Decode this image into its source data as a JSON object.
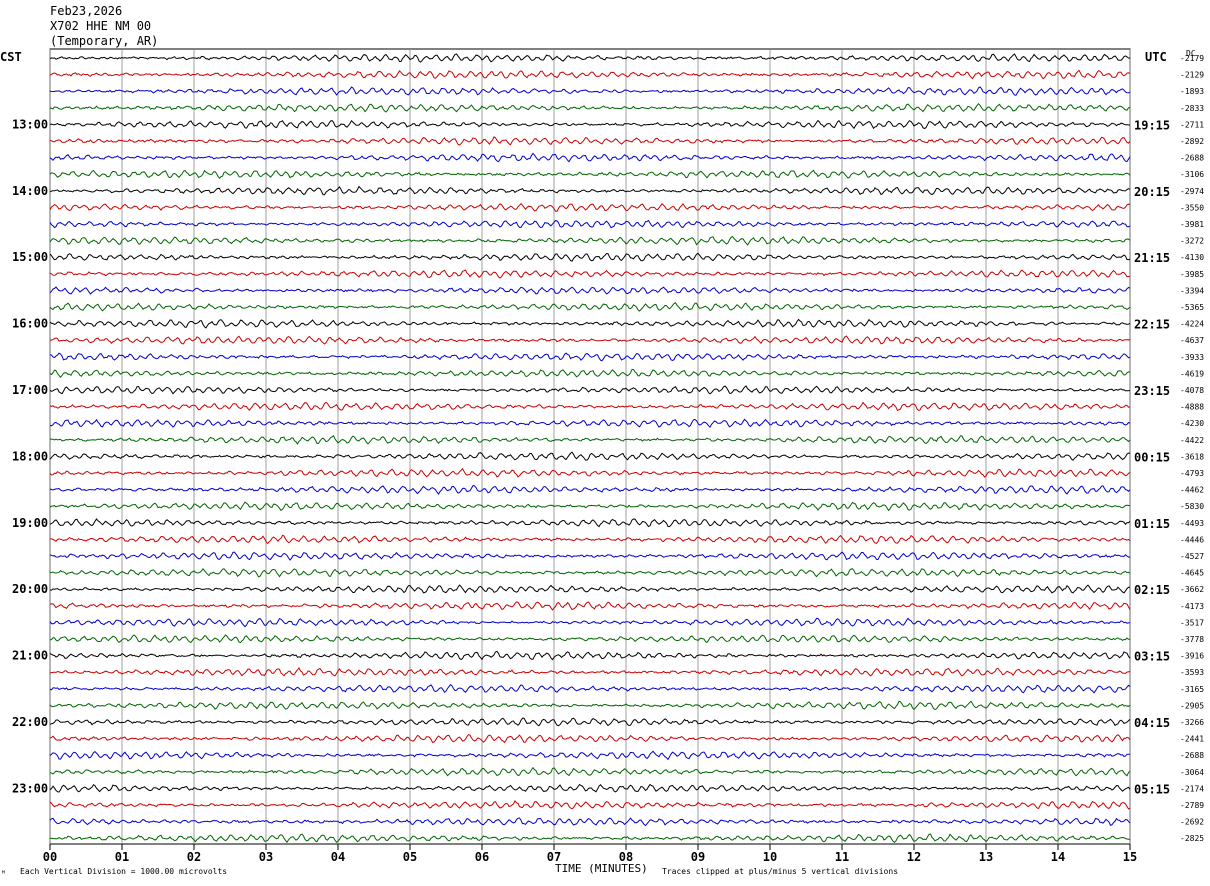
{
  "header": {
    "date": "Feb23,2026",
    "station": "X702 HHE NM 00",
    "location": "(Temporary, AR)"
  },
  "left_tz": "CST",
  "right_tz": "UTC",
  "dc_label": "DC",
  "footer": {
    "scale_note": "Each Vertical Division = 1000.00 microvolts",
    "xlabel": "TIME (MINUTES)",
    "clip_note": "Traces clipped at plus/minus 5 vertical divisions",
    "corner_mark": "ᴹ"
  },
  "colors": {
    "cycle": [
      "#000000",
      "#cc0000",
      "#0000cc",
      "#006600"
    ],
    "grid": "#888888"
  },
  "chart_data": {
    "type": "line",
    "xlabel": "TIME (MINUTES)",
    "x_ticks": [
      "00",
      "01",
      "02",
      "03",
      "04",
      "05",
      "06",
      "07",
      "08",
      "09",
      "10",
      "11",
      "12",
      "13",
      "14",
      "15"
    ],
    "xlim": [
      0,
      15
    ],
    "left_hour_labels": [
      "13:00",
      "14:00",
      "15:00",
      "16:00",
      "17:00",
      "18:00",
      "19:00",
      "20:00",
      "21:00",
      "22:00",
      "23:00"
    ],
    "right_hour_labels": [
      "19:15",
      "20:15",
      "21:15",
      "22:15",
      "23:15",
      "00:15",
      "01:15",
      "02:15",
      "03:15",
      "04:15",
      "05:15"
    ],
    "trace_dc_offsets": [
      "-2179",
      "-2129",
      "-1893",
      "-2833",
      "-2711",
      "-2892",
      "-2688",
      "-3106",
      "-2974",
      "-3550",
      "-3981",
      "-3272",
      "-4130",
      "-3985",
      "-3394",
      "-5365",
      "-4224",
      "-4637",
      "-3933",
      "-4619",
      "-4078",
      "-4888",
      "-4230",
      "-4422",
      "-3618",
      "-4793",
      "-4462",
      "-5830",
      "-4493",
      "-4446",
      "-4527",
      "-4645",
      "-3662",
      "-4173",
      "-3517",
      "-3778",
      "-3916",
      "-3593",
      "-3165",
      "-2905",
      "-3266",
      "-2441",
      "-2688",
      "-3064",
      "-2174",
      "-2789",
      "-2692",
      "-2825"
    ]
  }
}
